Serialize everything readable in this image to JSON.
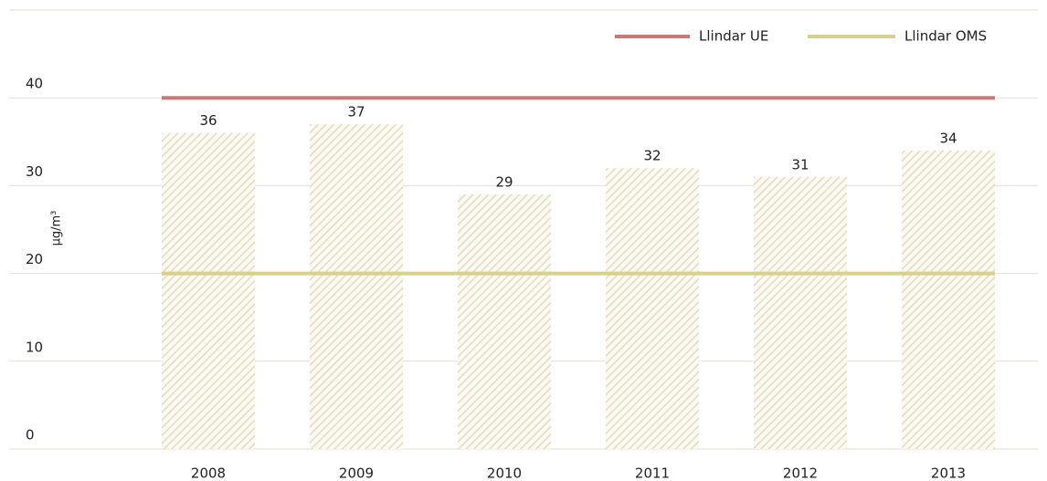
{
  "chart_data": {
    "type": "bar",
    "categories": [
      "2008",
      "2009",
      "2010",
      "2011",
      "2012",
      "2013"
    ],
    "values": [
      36,
      37,
      29,
      32,
      31,
      34
    ],
    "color": "#e3dcc0",
    "ylim": [
      0,
      50
    ],
    "yticks": [
      0,
      10,
      20,
      30,
      40
    ],
    "y_label": "µg/m³",
    "grid": true,
    "legend": "top-right",
    "series": [
      {
        "name": "Llindar UE",
        "color": "#c97a78",
        "values": [
          40,
          40,
          40,
          40,
          40,
          40
        ]
      },
      {
        "name": "Llindar OMS",
        "color": "#d8d08e",
        "values": [
          20,
          20,
          20,
          20,
          20,
          20
        ]
      }
    ]
  }
}
